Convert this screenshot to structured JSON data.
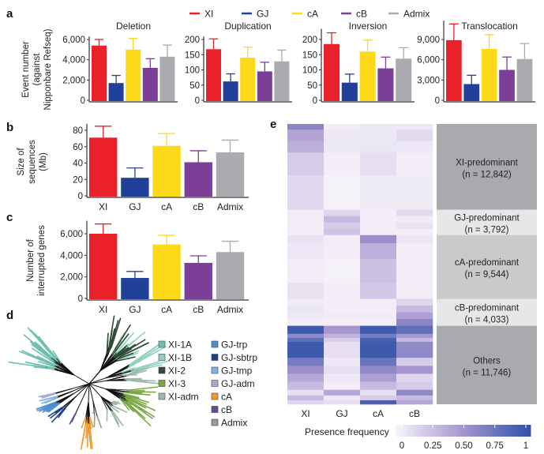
{
  "panel_labels": {
    "a": "a",
    "b": "b",
    "c": "c",
    "d": "d",
    "e": "e"
  },
  "legend": [
    {
      "name": "XI",
      "color": "#e8212b"
    },
    {
      "name": "GJ",
      "color": "#21409a"
    },
    {
      "name": "cA",
      "color": "#fcd919"
    },
    {
      "name": "cB",
      "color": "#7b3f98"
    },
    {
      "name": "Admix",
      "color": "#a9abae"
    }
  ],
  "axis_labels": {
    "a": [
      "Event number",
      "(against",
      "Nipponbare Refseq)"
    ],
    "b": [
      "Size of",
      "sequences",
      "(Mb)"
    ],
    "c": [
      "Number of",
      "interrupted genes"
    ]
  },
  "chart_data": [
    {
      "type": "bar",
      "panel": "a",
      "title": "Deletion",
      "categories": [
        "XI",
        "GJ",
        "cA",
        "cB",
        "Admix"
      ],
      "values": [
        5400,
        1700,
        5000,
        3200,
        4300
      ],
      "error_upper": [
        6000,
        2450,
        6100,
        4100,
        5450
      ],
      "ticks": [
        0,
        2000,
        4000,
        6000
      ],
      "tick_labels": [
        "0",
        "2,000",
        "4,000",
        "6,000"
      ],
      "ylim": [
        0,
        6300
      ],
      "show_categories": false
    },
    {
      "type": "bar",
      "panel": "a",
      "title": "Duplication",
      "categories": [
        "XI",
        "GJ",
        "cA",
        "cB",
        "Admix"
      ],
      "values": [
        168,
        62,
        140,
        95,
        128
      ],
      "error_upper": [
        202,
        87,
        175,
        125,
        165
      ],
      "ticks": [
        0,
        50,
        100,
        150,
        200
      ],
      "tick_labels": [
        "0",
        "50",
        "100",
        "150",
        "200"
      ],
      "ylim": [
        0,
        210
      ],
      "show_categories": false
    },
    {
      "type": "bar",
      "panel": "a",
      "title": "Inversion",
      "categories": [
        "XI",
        "GJ",
        "cA",
        "cB",
        "Admix"
      ],
      "values": [
        185,
        58,
        160,
        105,
        137
      ],
      "error_upper": [
        222,
        86,
        198,
        142,
        173
      ],
      "ticks": [
        0,
        50,
        100,
        150,
        200
      ],
      "tick_labels": [
        "0",
        "50",
        "100",
        "150",
        "200"
      ],
      "ylim": [
        0,
        235
      ],
      "show_categories": false
    },
    {
      "type": "bar",
      "panel": "a",
      "title": "Translocation",
      "categories": [
        "XI",
        "GJ",
        "cA",
        "cB",
        "Admix"
      ],
      "values": [
        8900,
        2400,
        7600,
        4500,
        6100
      ],
      "error_upper": [
        11300,
        3700,
        9700,
        6400,
        8400
      ],
      "ticks": [
        0,
        3000,
        6000,
        9000
      ],
      "tick_labels": [
        "0",
        "3,000",
        "6,000",
        "9,000"
      ],
      "ylim": [
        0,
        11800
      ],
      "show_categories": false
    },
    {
      "type": "bar",
      "panel": "b",
      "title": "",
      "categories": [
        "XI",
        "GJ",
        "cA",
        "cB",
        "Admix"
      ],
      "values": [
        71,
        22,
        61,
        41,
        53
      ],
      "error_upper": [
        85,
        34,
        76,
        55,
        68
      ],
      "ticks": [
        0,
        20,
        40,
        60,
        80
      ],
      "tick_labels": [
        "0",
        "20",
        "40",
        "60",
        "80"
      ],
      "ylim": [
        0,
        88
      ],
      "show_categories": true
    },
    {
      "type": "bar",
      "panel": "c",
      "title": "",
      "categories": [
        "XI",
        "GJ",
        "cA",
        "cB",
        "Admix"
      ],
      "values": [
        6000,
        1900,
        5000,
        3300,
        4300
      ],
      "error_upper": [
        6900,
        2500,
        5850,
        3950,
        5300
      ],
      "ticks": [
        0,
        2000,
        4000,
        6000
      ],
      "tick_labels": [
        "0",
        "2,000",
        "4,000",
        "6,000"
      ],
      "ylim": [
        0,
        7200
      ],
      "show_categories": true
    },
    {
      "type": "heatmap",
      "panel": "e",
      "columns": [
        "XI",
        "GJ",
        "cA",
        "cB"
      ],
      "colorbar": {
        "title": "Presence frequency",
        "range": [
          0,
          1
        ],
        "ticks": [
          "0",
          "0.25",
          "0.50",
          "0.75",
          "1"
        ],
        "colors": [
          "#f5f1f9",
          "#a596cf",
          "#3353a8"
        ]
      },
      "groups": [
        {
          "label": "XI-predominant",
          "n": 12842,
          "n_text": "(n = 12,842)",
          "shade": "#a8aaad",
          "bands": [
            [
              0.62,
              0.02,
              0.05,
              0.05,
              1
            ],
            [
              0.42,
              0.05,
              0.05,
              0.12,
              2
            ],
            [
              0.35,
              0.05,
              0.06,
              0.05,
              2
            ],
            [
              0.2,
              0.02,
              0.1,
              0.02,
              4
            ],
            [
              0.13,
              0.0,
              0.03,
              0.03,
              6
            ]
          ]
        },
        {
          "label": "GJ-predominant",
          "n": 3792,
          "n_text": "(n = 3,792)",
          "shade": "#e6e7e8",
          "bands": [
            [
              0.03,
              0.15,
              0.02,
              0.12,
              1
            ],
            [
              0.02,
              0.3,
              0.02,
              0.03,
              1
            ],
            [
              0.02,
              0.2,
              0.02,
              0.08,
              1
            ],
            [
              0.02,
              0.25,
              0.02,
              0.02,
              1
            ]
          ]
        },
        {
          "label": "cA-predominant",
          "n": 9544,
          "n_text": "(n = 9,544)",
          "shade": "#c9cacc",
          "bands": [
            [
              0.08,
              0.02,
              0.55,
              0.06,
              1
            ],
            [
              0.05,
              0.02,
              0.36,
              0.02,
              2
            ],
            [
              0.02,
              0.0,
              0.26,
              0.02,
              3
            ],
            [
              0.08,
              0.02,
              0.22,
              0.02,
              2
            ]
          ]
        },
        {
          "label": "cB-predominant",
          "n": 4033,
          "n_text": "(n = 4,033)",
          "shade": "#e6e7e8",
          "bands": [
            [
              0.03,
              0.02,
              0.02,
              0.15,
              1
            ],
            [
              0.06,
              0.02,
              0.02,
              0.3,
              1
            ],
            [
              0.05,
              0.03,
              0.03,
              0.45,
              1
            ],
            [
              0.02,
              0.02,
              0.02,
              0.62,
              1
            ]
          ]
        },
        {
          "label": "Others",
          "n": 11746,
          "n_text": "(n = 11,746)",
          "shade": "#a8aaad",
          "bands": [
            [
              0.95,
              0.5,
              0.95,
              0.8,
              1
            ],
            [
              0.6,
              0.35,
              0.7,
              0.5,
              0.5
            ],
            [
              0.8,
              0.2,
              0.9,
              0.3,
              0.5
            ],
            [
              0.95,
              0.1,
              0.95,
              0.6,
              2
            ],
            [
              0.7,
              0.05,
              0.75,
              0.2,
              1
            ],
            [
              0.55,
              0.1,
              0.6,
              0.5,
              1
            ],
            [
              0.4,
              0.05,
              0.45,
              0.15,
              1
            ],
            [
              0.3,
              0.02,
              0.3,
              0.2,
              1
            ],
            [
              0.1,
              0.4,
              0.1,
              0.6,
              0.7
            ],
            [
              0.3,
              0.05,
              0.2,
              0.3,
              0.6
            ],
            [
              0.15,
              0.1,
              0.9,
              0.4,
              0.5
            ]
          ]
        }
      ]
    }
  ],
  "tree_legend": [
    {
      "name": "XI-1A",
      "color": "#6cc0ad"
    },
    {
      "name": "XI-1B",
      "color": "#8fd0c0"
    },
    {
      "name": "XI-2",
      "color": "#2f4a35"
    },
    {
      "name": "XI-3",
      "color": "#7ca945"
    },
    {
      "name": "XI-adm",
      "color": "#9db9a8"
    },
    {
      "name": "GJ-trp",
      "color": "#4d8ed0"
    },
    {
      "name": "GJ-sbtrp",
      "color": "#1f3f8a"
    },
    {
      "name": "GJ-tmp",
      "color": "#7fb5e6"
    },
    {
      "name": "GJ-adm",
      "color": "#a9a9cf"
    },
    {
      "name": "cA",
      "color": "#f29a2e"
    },
    {
      "name": "cB",
      "color": "#6b48a0"
    },
    {
      "name": "Admix",
      "color": "#9a9a9a"
    }
  ]
}
